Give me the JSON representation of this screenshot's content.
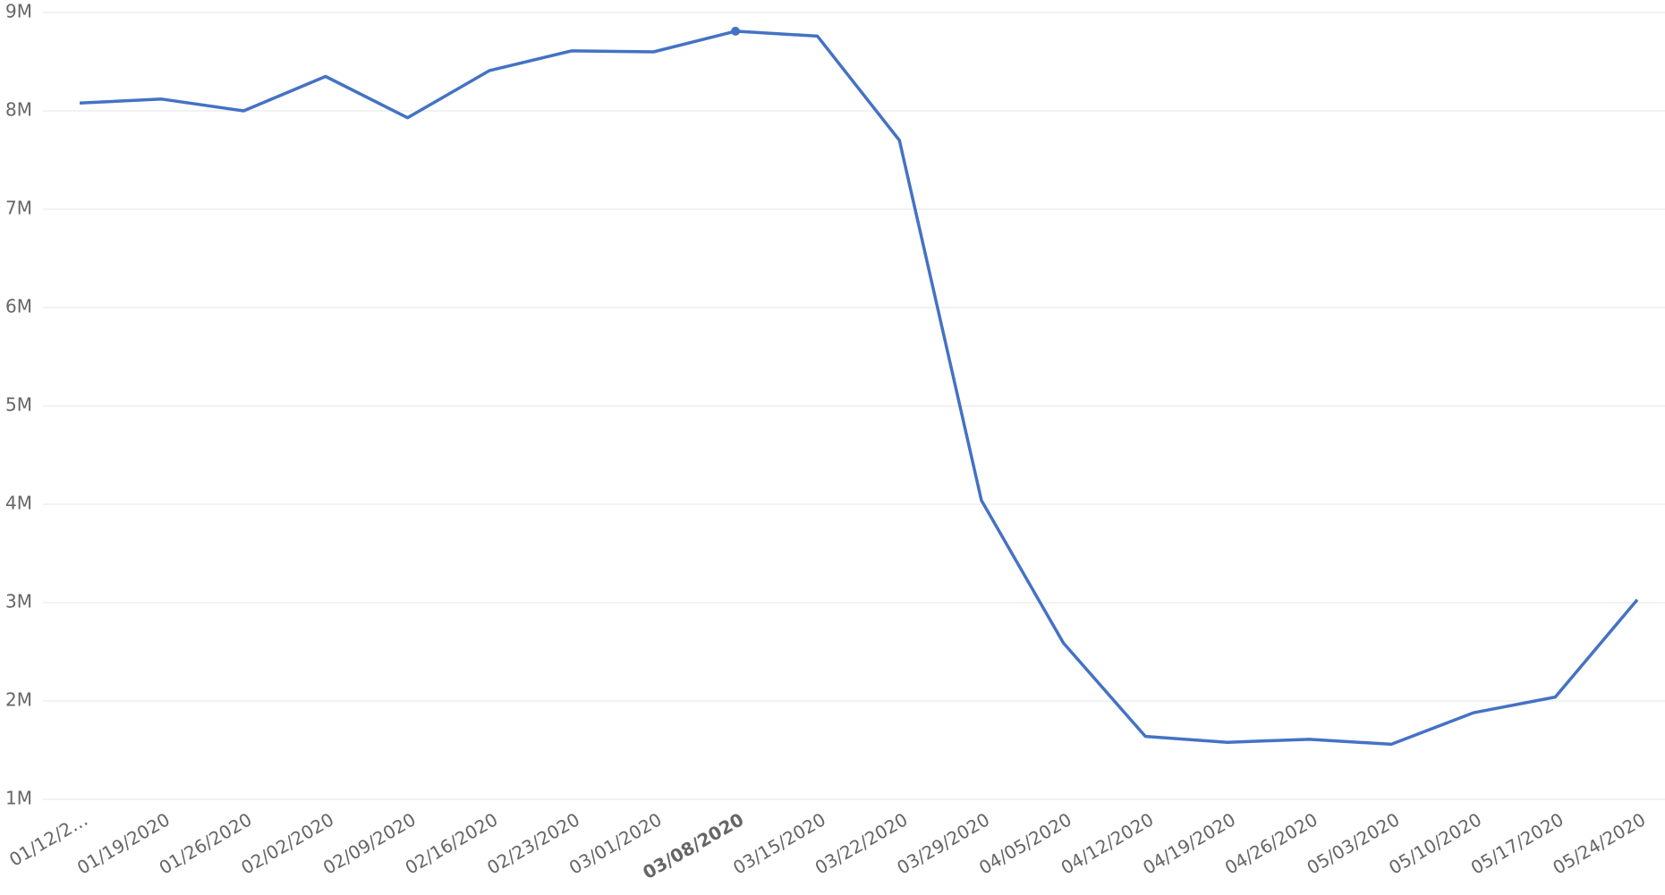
{
  "chart_data": {
    "type": "line",
    "categories": [
      "01/12/2…",
      "01/19/2020",
      "01/26/2020",
      "02/02/2020",
      "02/09/2020",
      "02/16/2020",
      "02/23/2020",
      "03/01/2020",
      "03/08/2020",
      "03/15/2020",
      "03/22/2020",
      "03/29/2020",
      "04/05/2020",
      "04/12/2020",
      "04/19/2020",
      "04/26/2020",
      "05/03/2020",
      "05/10/2020",
      "05/17/2020",
      "05/24/2020"
    ],
    "series": [
      {
        "color": "#4472c4",
        "values": [
          8080000,
          8120000,
          8000000,
          8350000,
          7930000,
          8410000,
          8610000,
          8600000,
          8810000,
          8760000,
          7700000,
          4040000,
          2590000,
          1640000,
          1580000,
          1610000,
          1560000,
          1880000,
          2040000,
          3030000
        ]
      }
    ],
    "highlight_index": 8,
    "ylim": [
      1000000,
      9000000
    ],
    "yticks": [
      {
        "value": 1000000,
        "label": "1M"
      },
      {
        "value": 2000000,
        "label": "2M"
      },
      {
        "value": 3000000,
        "label": "3M"
      },
      {
        "value": 4000000,
        "label": "4M"
      },
      {
        "value": 5000000,
        "label": "5M"
      },
      {
        "value": 6000000,
        "label": "6M"
      },
      {
        "value": 7000000,
        "label": "7M"
      },
      {
        "value": 8000000,
        "label": "8M"
      },
      {
        "value": 9000000,
        "label": "9M"
      }
    ],
    "grid": true
  }
}
